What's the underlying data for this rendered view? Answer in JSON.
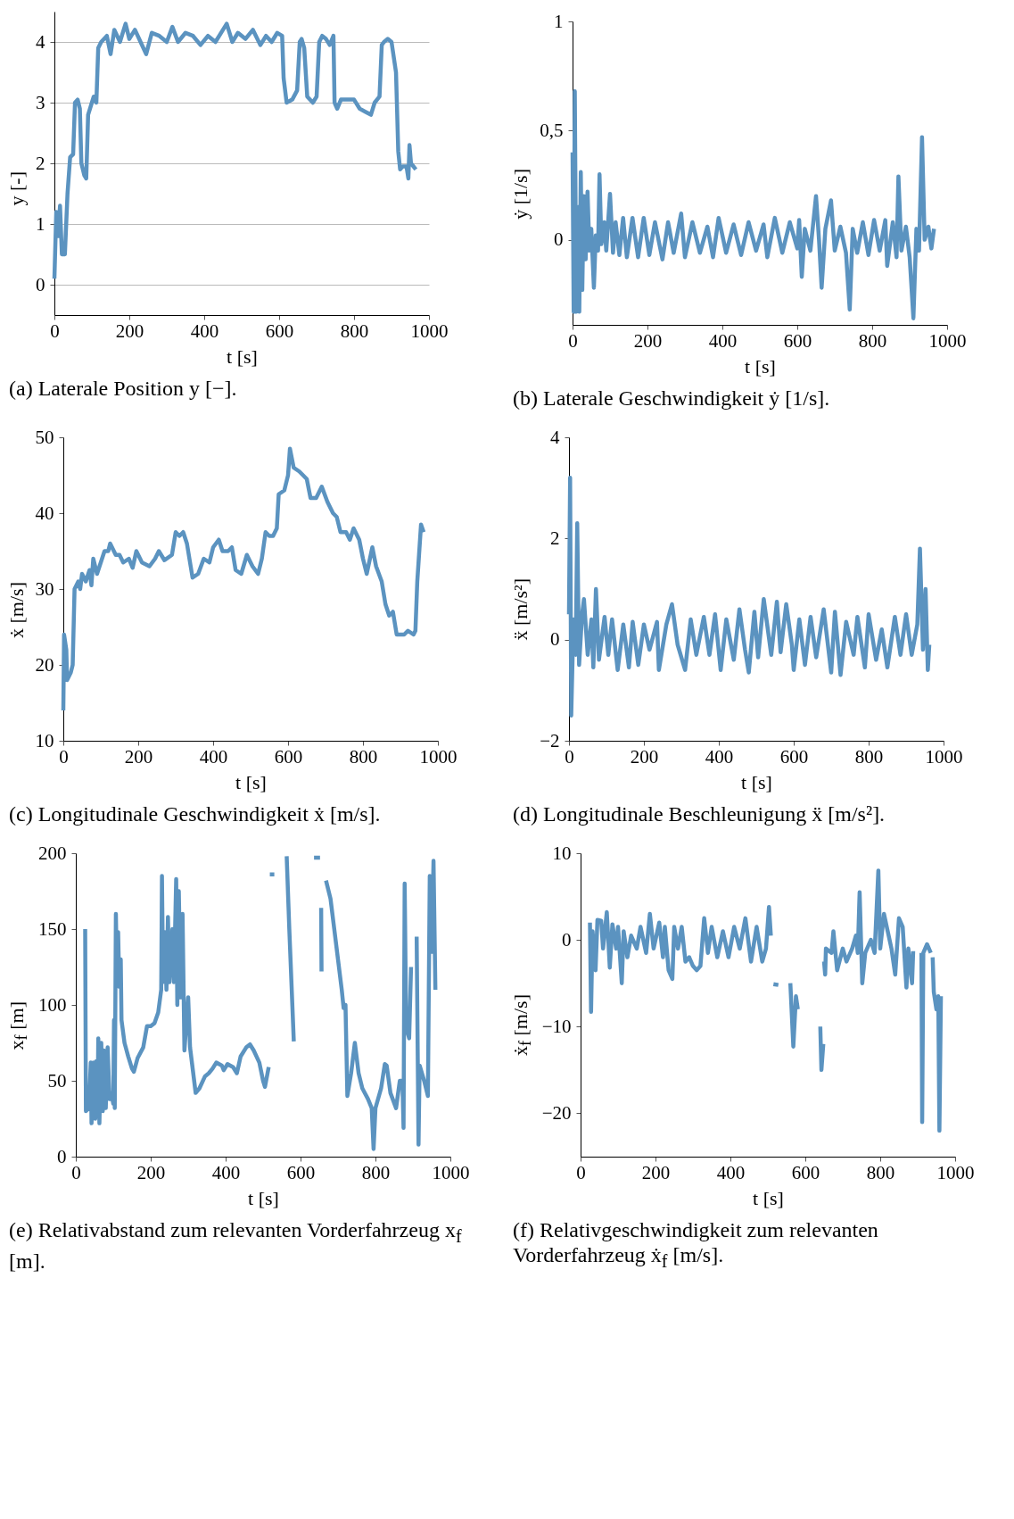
{
  "chart_data": [
    {
      "type": "line",
      "title": "(a) Laterale Position y [−].",
      "xlabel": "t [s]",
      "ylabel": "y [-]",
      "xlim": [
        0,
        1000
      ],
      "xticks": [
        0,
        200,
        400,
        600,
        800,
        1000
      ],
      "ylim": [
        -0.5,
        4.5
      ],
      "yticks": [
        0,
        1,
        2,
        3,
        4
      ],
      "grid": "y",
      "series": [
        {
          "color": "#5b93c0",
          "x": [
            0,
            5,
            10,
            15,
            20,
            28,
            35,
            42,
            50,
            55,
            62,
            68,
            72,
            80,
            85,
            90,
            100,
            105,
            112,
            117,
            125,
            140,
            150,
            160,
            175,
            190,
            200,
            215,
            230,
            245,
            260,
            280,
            300,
            315,
            330,
            350,
            370,
            390,
            410,
            430,
            450,
            460,
            475,
            490,
            510,
            530,
            550,
            565,
            580,
            595,
            608,
            612,
            620,
            635,
            648,
            655,
            660,
            667,
            675,
            690,
            700,
            707,
            715,
            725,
            735,
            745,
            748,
            755,
            765,
            780,
            800,
            815,
            830,
            845,
            855,
            868,
            874,
            880,
            890,
            900,
            912,
            918,
            923,
            930,
            940,
            945,
            948,
            952,
            965
          ],
          "values": [
            0.1,
            1.2,
            0.8,
            1.3,
            0.5,
            0.5,
            1.5,
            2.1,
            2.15,
            3.0,
            3.05,
            2.9,
            2.0,
            1.8,
            1.75,
            2.8,
            3.0,
            3.1,
            3.0,
            3.9,
            4.0,
            4.1,
            3.8,
            4.2,
            4.0,
            4.3,
            4.05,
            4.2,
            4.0,
            3.8,
            4.15,
            4.1,
            4.0,
            4.25,
            4.0,
            4.15,
            4.1,
            3.95,
            4.1,
            4.0,
            4.2,
            4.3,
            4.0,
            4.15,
            4.05,
            4.2,
            3.95,
            4.1,
            4.0,
            4.15,
            4.1,
            3.4,
            3.0,
            3.05,
            3.2,
            4.0,
            4.05,
            3.9,
            3.1,
            3.0,
            3.1,
            4.0,
            4.1,
            4.05,
            3.95,
            4.1,
            3.0,
            2.9,
            3.05,
            3.05,
            3.05,
            2.9,
            2.85,
            2.8,
            3.0,
            3.1,
            3.95,
            4.0,
            4.05,
            4.0,
            3.5,
            2.2,
            1.9,
            1.95,
            1.95,
            1.75,
            2.3,
            2.0,
            1.9
          ]
        }
      ]
    },
    {
      "type": "line",
      "title": "(b) Laterale Geschwindigkeit ẏ [1/s].",
      "xlabel": "t [s]",
      "ylabel": "ẏ [1/s]",
      "xlim": [
        0,
        1000
      ],
      "xticks": [
        0,
        200,
        400,
        600,
        800,
        1000
      ],
      "ylim": [
        -0.39,
        1
      ],
      "yticks": [
        0,
        {
          "value": 0.5,
          "label": "0,5"
        },
        1
      ],
      "series": [
        {
          "color": "#5b93c0",
          "x": [
            0,
            3,
            6,
            10,
            15,
            18,
            22,
            26,
            30,
            35,
            40,
            45,
            50,
            57,
            62,
            68,
            72,
            77,
            85,
            90,
            100,
            108,
            115,
            125,
            135,
            145,
            160,
            175,
            190,
            205,
            220,
            240,
            255,
            270,
            290,
            300,
            320,
            340,
            360,
            375,
            390,
            410,
            430,
            450,
            470,
            490,
            510,
            520,
            540,
            560,
            580,
            600,
            605,
            612,
            620,
            635,
            650,
            658,
            665,
            675,
            690,
            700,
            715,
            730,
            740,
            748,
            760,
            775,
            790,
            805,
            820,
            835,
            840,
            855,
            865,
            870,
            878,
            890,
            900,
            910,
            918,
            925,
            933,
            940,
            950,
            958,
            965
          ],
          "values": [
            0.4,
            -0.33,
            0.68,
            -0.33,
            0.15,
            -0.33,
            0.31,
            -0.23,
            0.2,
            -0.09,
            0.22,
            -0.05,
            0.05,
            -0.22,
            0.02,
            -0.05,
            0.3,
            -0.02,
            0.08,
            -0.05,
            0.21,
            -0.06,
            0.08,
            -0.07,
            0.1,
            -0.08,
            0.1,
            -0.08,
            0.1,
            -0.07,
            0.08,
            -0.09,
            0.08,
            -0.06,
            0.12,
            -0.08,
            0.08,
            -0.06,
            0.06,
            -0.08,
            0.1,
            -0.06,
            0.07,
            -0.07,
            0.08,
            -0.05,
            0.07,
            -0.08,
            0.1,
            -0.06,
            0.08,
            -0.04,
            0.09,
            -0.17,
            0.05,
            -0.05,
            0.2,
            0.0,
            -0.22,
            0.05,
            0.18,
            -0.05,
            0.06,
            -0.06,
            -0.32,
            0.05,
            -0.06,
            0.08,
            -0.07,
            0.09,
            -0.05,
            0.09,
            -0.12,
            0.08,
            -0.08,
            0.29,
            -0.05,
            0.06,
            -0.08,
            -0.36,
            0.05,
            -0.05,
            0.47,
            0.0,
            0.06,
            -0.04,
            0.05
          ]
        }
      ]
    },
    {
      "type": "line",
      "title": "(c) Longitudinale Geschwindigkeit ẋ [m/s].",
      "xlabel": "t [s]",
      "ylabel": "ẋ [m/s]",
      "xlim": [
        0,
        1000
      ],
      "xticks": [
        0,
        200,
        400,
        600,
        800,
        1000
      ],
      "ylim": [
        10,
        50
      ],
      "yticks": [
        10,
        20,
        30,
        40,
        50
      ],
      "series": [
        {
          "color": "#5b93c0",
          "x": [
            0,
            2,
            8,
            10,
            20,
            25,
            30,
            40,
            45,
            50,
            60,
            70,
            75,
            80,
            90,
            100,
            110,
            120,
            125,
            140,
            150,
            160,
            175,
            185,
            195,
            210,
            230,
            245,
            255,
            270,
            290,
            300,
            310,
            320,
            330,
            340,
            345,
            360,
            375,
            390,
            400,
            415,
            425,
            440,
            450,
            460,
            475,
            490,
            505,
            520,
            530,
            540,
            550,
            560,
            570,
            575,
            590,
            600,
            605,
            615,
            630,
            650,
            660,
            675,
            690,
            705,
            720,
            730,
            740,
            755,
            765,
            775,
            790,
            800,
            810,
            825,
            835,
            850,
            860,
            870,
            880,
            890,
            910,
            920,
            935,
            940,
            945,
            955,
            962
          ],
          "values": [
            14,
            24,
            22,
            18,
            19,
            20,
            30,
            31,
            30,
            32,
            31,
            32.5,
            30.5,
            34,
            32,
            33.5,
            35,
            35,
            36,
            34.5,
            34.5,
            33.5,
            34,
            32.8,
            35,
            33.5,
            33,
            34,
            35,
            33.8,
            34.5,
            37.5,
            37,
            37.5,
            36,
            33,
            31.5,
            32,
            34,
            33.5,
            35.5,
            36.5,
            35,
            35,
            35.5,
            32.5,
            32,
            34.5,
            33,
            32,
            34,
            37.5,
            37,
            37,
            38,
            42.5,
            43,
            45,
            48.5,
            46,
            45.5,
            44.5,
            42,
            42,
            43.5,
            41.5,
            40,
            39.5,
            37.5,
            37.5,
            36.5,
            38,
            36.5,
            34,
            32,
            35.5,
            33,
            31,
            28,
            26.5,
            27,
            24,
            24,
            24.5,
            24,
            24.5,
            31,
            38.5,
            37.5
          ]
        }
      ]
    },
    {
      "type": "line",
      "title": "(d) Longitudinale Beschleunigung ẍ [m/s²].",
      "xlabel": "t [s]",
      "ylabel": "ẍ [m/s²]",
      "xlim": [
        0,
        1000
      ],
      "xticks": [
        0,
        200,
        400,
        600,
        800,
        1000
      ],
      "ylim": [
        -2,
        4
      ],
      "yticks": [
        {
          "value": -2,
          "label": "−2"
        },
        0,
        2,
        4
      ],
      "series": [
        {
          "color": "#5b93c0",
          "x": [
            0,
            3,
            6,
            12,
            18,
            22,
            27,
            35,
            40,
            50,
            60,
            65,
            72,
            80,
            95,
            105,
            115,
            130,
            145,
            160,
            170,
            185,
            200,
            215,
            235,
            240,
            260,
            275,
            290,
            310,
            325,
            340,
            360,
            375,
            390,
            405,
            420,
            440,
            455,
            470,
            480,
            495,
            505,
            520,
            540,
            555,
            565,
            580,
            595,
            600,
            615,
            630,
            645,
            660,
            680,
            700,
            710,
            725,
            740,
            760,
            770,
            790,
            800,
            820,
            835,
            850,
            870,
            885,
            900,
            915,
            930,
            937,
            945,
            952,
            958,
            962
          ],
          "values": [
            0.5,
            3.2,
            -1.5,
            0.4,
            -0.3,
            2.3,
            -0.5,
            0.5,
            0.8,
            -0.3,
            0.4,
            -0.55,
            1.0,
            -0.4,
            0.45,
            -0.3,
            0.4,
            -0.6,
            0.3,
            -0.55,
            0.35,
            -0.5,
            0.3,
            -0.2,
            0.35,
            -0.6,
            0.3,
            0.7,
            -0.1,
            -0.6,
            0.4,
            -0.3,
            0.45,
            -0.3,
            0.5,
            -0.6,
            0.4,
            -0.4,
            0.6,
            -0.2,
            -0.65,
            0.55,
            -0.35,
            0.8,
            -0.3,
            0.75,
            -0.25,
            0.7,
            -0.1,
            -0.6,
            0.4,
            -0.5,
            0.45,
            -0.35,
            0.6,
            -0.65,
            0.55,
            -0.7,
            0.35,
            -0.3,
            0.45,
            -0.55,
            0.5,
            -0.4,
            0.2,
            -0.55,
            0.45,
            -0.3,
            0.5,
            -0.3,
            0.3,
            1.8,
            -0.2,
            1.0,
            -0.6,
            -0.1
          ]
        }
      ]
    },
    {
      "type": "line",
      "title": "(e) Relativabstand zum relevanten Vorderfahrzeug x$_{f}$ [m].",
      "xlabel": "t [s]",
      "ylabel": "x$_{f}$ [m]",
      "xlim": [
        0,
        1000
      ],
      "xticks": [
        0,
        200,
        400,
        600,
        800,
        1000
      ],
      "ylim": [
        0,
        200
      ],
      "yticks": [
        0,
        50,
        100,
        150,
        200
      ],
      "series": [
        {
          "color": "#5b93c0",
          "x": [
            25,
            27,
            35,
            40,
            42,
            48,
            52,
            55,
            58,
            60,
            63,
            68,
            72,
            75,
            80,
            85,
            90,
            95,
            100,
            102,
            104,
            107,
            110,
            113,
            116,
            120,
            122,
            130,
            140,
            150,
            155,
            165,
            180,
            190,
            200,
            210,
            220,
            228,
            230,
            233,
            238,
            242,
            246,
            250,
            258,
            262,
            268,
            271,
            275,
            280,
            285,
            290,
            300,
            305,
            320,
            330,
            345,
            355,
            365,
            375,
            390,
            395,
            405,
            420,
            430,
            440,
            455,
            465,
            475,
            490,
            500,
            505,
            515,
            null,
            518,
            530,
            null,
            563,
            570,
            582,
            null,
            636,
            652,
            null,
            655,
            656,
            null,
            668,
            680,
            690,
            700,
            710,
            715,
            720,
            725,
            735,
            745,
            755,
            765,
            780,
            790,
            795,
            800,
            815,
            825,
            830,
            840,
            855,
            865,
            872,
            875,
            878,
            882,
            890,
            895,
            null,
            910,
            915,
            918,
            930,
            940,
            945,
            950,
            955,
            960
          ],
          "values": [
            150,
            30,
            32,
            62,
            22,
            62,
            25,
            63,
            28,
            78,
            22,
            75,
            30,
            70,
            32,
            72,
            38,
            42,
            35,
            90,
            32,
            160,
            115,
            148,
            112,
            130,
            90,
            75,
            66,
            58,
            56,
            65,
            72,
            86,
            86,
            88,
            95,
            110,
            185,
            115,
            148,
            110,
            158,
            115,
            150,
            115,
            183,
            100,
            175,
            105,
            160,
            70,
            105,
            72,
            42,
            45,
            53,
            55,
            58,
            62,
            60,
            57,
            61,
            59,
            55,
            66,
            72,
            74,
            70,
            62,
            50,
            46,
            59,
            null,
            186,
            186,
            null,
            198,
            150,
            76,
            null,
            197,
            197,
            null,
            164,
            122,
            null,
            182,
            170,
            150,
            130,
            110,
            98,
            100,
            40,
            55,
            75,
            55,
            45,
            38,
            32,
            5,
            32,
            45,
            61,
            60,
            42,
            32,
            50,
            50,
            19,
            180,
            85,
            78,
            125,
            null,
            145,
            8,
            60,
            50,
            40,
            185,
            135,
            195,
            110
          ]
        }
      ]
    },
    {
      "type": "line",
      "title": "(f) Relativgeschwindigkeit zum relevanten Vorderfahrzeug ẋ$_{f}$ [m/s].",
      "xlabel": "t [s]",
      "ylabel": "ẋ$_{f}$ [m/s]",
      "xlim": [
        0,
        1000
      ],
      "xticks": [
        0,
        200,
        400,
        600,
        800,
        1000
      ],
      "ylim": [
        -25,
        10
      ],
      "yticks": [
        {
          "value": -20,
          "label": "−20"
        },
        {
          "value": -10,
          "label": "−10"
        },
        0,
        10
      ],
      "series": [
        {
          "color": "#5b93c0",
          "x": [
            25,
            28,
            32,
            40,
            45,
            55,
            60,
            70,
            78,
            85,
            95,
            100,
            110,
            115,
            125,
            135,
            150,
            160,
            175,
            185,
            195,
            210,
            220,
            225,
            235,
            245,
            250,
            260,
            270,
            280,
            290,
            300,
            310,
            320,
            330,
            340,
            350,
            365,
            380,
            395,
            410,
            425,
            440,
            455,
            470,
            485,
            495,
            503,
            508,
            null,
            515,
            528,
            null,
            560,
            568,
            575,
            580,
            null,
            640,
            643,
            648,
            null,
            650,
            653,
            655,
            670,
            675,
            685,
            700,
            710,
            725,
            735,
            740,
            745,
            752,
            760,
            775,
            785,
            795,
            800,
            810,
            820,
            830,
            840,
            850,
            860,
            870,
            875,
            885,
            888,
            null,
            910,
            912,
            915,
            925,
            935,
            null,
            940,
            943,
            950,
            955,
            958,
            962
          ],
          "values": [
            2,
            -8.3,
            1,
            -3.5,
            2.3,
            2.2,
            -1,
            3.2,
            -3.2,
            1.8,
            -1,
            1.5,
            -5,
            1,
            -2,
            0.5,
            -1,
            1.5,
            -1.5,
            3,
            -1,
            2,
            -2,
            1.5,
            -3.5,
            -4.5,
            1.5,
            -1,
            1.5,
            -2.5,
            -2,
            -3,
            -3.5,
            -3,
            2.5,
            -1.5,
            1.5,
            -2,
            1,
            -2,
            1.5,
            -1,
            2.5,
            -2.5,
            1.5,
            -2.5,
            -1,
            3.8,
            0.5,
            null,
            -5.1,
            -5.2,
            null,
            -5,
            -12.3,
            -6.5,
            -8,
            null,
            -10,
            -15,
            -12,
            null,
            -2.5,
            -4,
            -1,
            -1.5,
            1,
            -3.5,
            -1,
            -2.5,
            -1,
            0.5,
            -1.5,
            5.5,
            -5,
            -1.5,
            0,
            -1.5,
            8,
            -1,
            3,
            1,
            -1,
            -4,
            2.5,
            1.5,
            -5.5,
            -1,
            -5,
            -1.3,
            null,
            -1.5,
            -21,
            -1.5,
            -0.5,
            -1.5,
            null,
            -2,
            -6,
            -8,
            -6.5,
            -22,
            -6.5
          ]
        }
      ]
    }
  ]
}
